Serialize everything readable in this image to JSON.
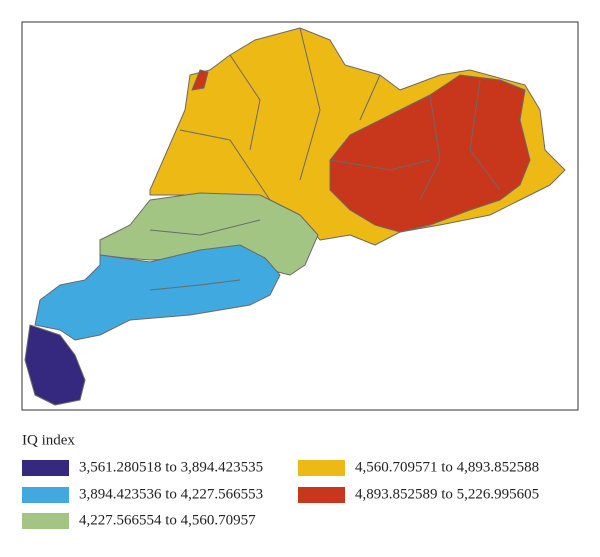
{
  "legend": {
    "title": "IQ index",
    "items": [
      {
        "label": "3,561.280518 to 3,894.423535",
        "color": "#35287f"
      },
      {
        "label": "3,894.423536 to 4,227.566553",
        "color": "#3fa9e0"
      },
      {
        "label": "4,227.566554 to 4,560.70957",
        "color": "#a3c583"
      },
      {
        "label": "4,560.709571 to 4,893.852588",
        "color": "#ecb915"
      },
      {
        "label": "4,893.852589 to 5,226.995605",
        "color": "#c8371c"
      }
    ]
  }
}
